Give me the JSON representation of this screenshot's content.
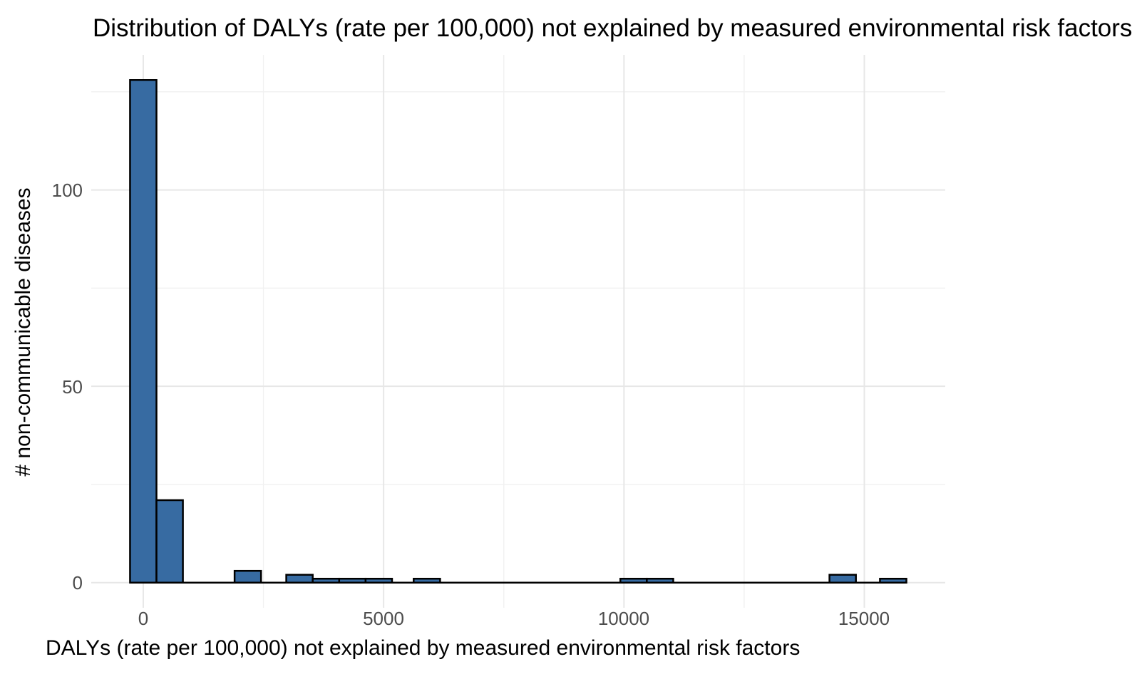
{
  "title": "Distribution of DALYs (rate per 100,000) not explained by measured environmental risk factors",
  "axes": {
    "x": {
      "label": "DALYs (rate per 100,000) not explained by measured environmental risk factors",
      "tick_labels": [
        "0",
        "5000",
        "10000",
        "15000"
      ]
    },
    "y": {
      "label": "# non-communicable diseases",
      "tick_labels": [
        "0",
        "50",
        "100"
      ]
    }
  },
  "colors": {
    "bar_fill": "#376BA2",
    "bar_stroke": "#000000",
    "grid_major": "#E7E7E7",
    "grid_minor": "#F1F1F1",
    "axis_text": "#4D4D4D",
    "title_text": "#000000",
    "background": "#FFFFFF"
  },
  "chart_data": {
    "type": "bar",
    "subtype": "histogram",
    "title": "Distribution of DALYs (rate per 100,000) not explained by measured environmental risk factors",
    "xlabel": "DALYs (rate per 100,000) not explained by measured environmental risk factors",
    "ylabel": "# non-communicable diseases",
    "x_ticks": [
      0,
      5000,
      10000,
      15000
    ],
    "x_minor_ticks": [
      2500,
      7500,
      12500
    ],
    "y_ticks": [
      0,
      50,
      100
    ],
    "y_minor_ticks": [
      25,
      75,
      125
    ],
    "xlim": [
      -1082,
      16683
    ],
    "ylim": [
      -6.4,
      134.4
    ],
    "grid": true,
    "legend": false,
    "bin_width": 550,
    "bars": [
      {
        "x": 0,
        "count": 128
      },
      {
        "x": 550,
        "count": 21
      },
      {
        "x": 2175,
        "count": 3
      },
      {
        "x": 3250,
        "count": 2
      },
      {
        "x": 3800,
        "count": 1
      },
      {
        "x": 4350,
        "count": 1
      },
      {
        "x": 4900,
        "count": 1
      },
      {
        "x": 5900,
        "count": 1
      },
      {
        "x": 10200,
        "count": 1
      },
      {
        "x": 10750,
        "count": 1
      },
      {
        "x": 14550,
        "count": 2
      },
      {
        "x": 15600,
        "count": 1
      }
    ],
    "zero_line_span": [
      -275,
      15875
    ]
  }
}
